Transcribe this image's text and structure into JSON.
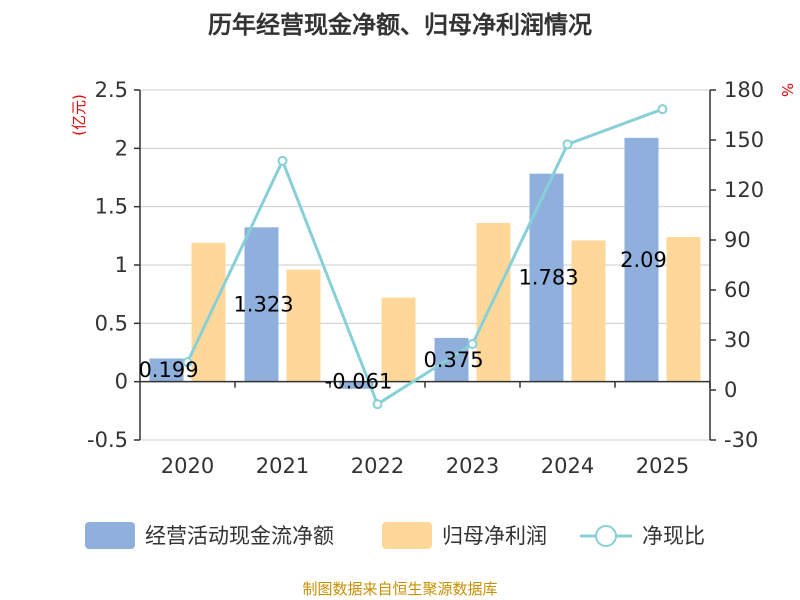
{
  "colors": {
    "operating_cash": "#8fb0dc",
    "net_profit": "#ffd899",
    "ratio": "#88d0d8",
    "source_text": "#c89000",
    "unit_text": "#e60000"
  },
  "chart_data": {
    "type": "bar",
    "title": "历年经营现金净额、归母净利润情况",
    "categories": [
      "2020",
      "2021",
      "2022",
      "2023",
      "2024",
      "2025"
    ],
    "series": [
      {
        "name": "经营活动现金流净额",
        "type": "bar",
        "axis": "left",
        "values": [
          0.199,
          1.323,
          -0.061,
          0.375,
          1.783,
          2.09
        ],
        "labels": [
          "0.199",
          "1.323",
          "-0.061",
          "0.375",
          "1.783",
          "2.09"
        ]
      },
      {
        "name": "归母净利润",
        "type": "bar",
        "axis": "left",
        "values": [
          1.19,
          0.96,
          0.72,
          1.36,
          1.21,
          1.24
        ]
      },
      {
        "name": "净现比",
        "type": "line",
        "axis": "right",
        "values": [
          16.7,
          137.5,
          -8.5,
          27.6,
          147.4,
          168.5
        ]
      }
    ],
    "y_left": {
      "unit": "(亿元)",
      "ylim": [
        -0.5,
        2.5
      ],
      "ticks": [
        "-0.5",
        "0",
        "0.5",
        "1",
        "1.5",
        "2",
        "2.5"
      ]
    },
    "y_right": {
      "unit": "%",
      "ylim": [
        -30,
        180
      ],
      "ticks": [
        "-30",
        "0",
        "30",
        "60",
        "90",
        "120",
        "150",
        "180"
      ]
    },
    "legend": [
      "经营活动现金流净额",
      "归母净利润",
      "净现比"
    ],
    "source": "制图数据来自恒生聚源数据库"
  }
}
